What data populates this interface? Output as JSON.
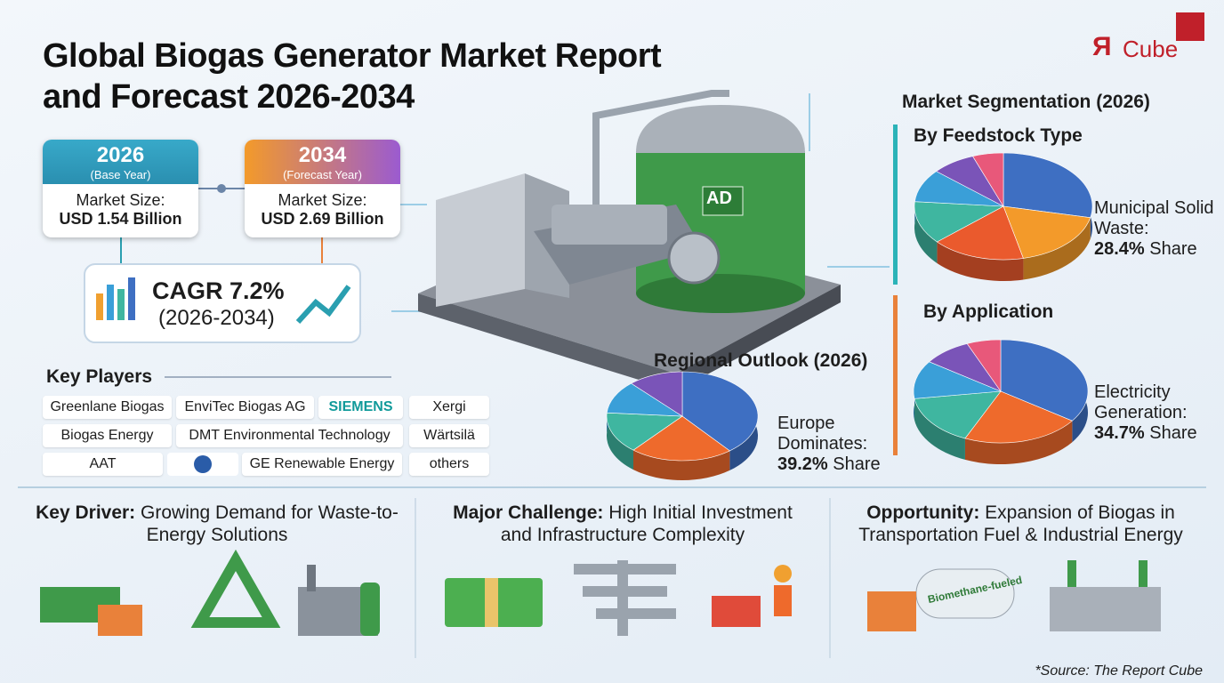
{
  "header": {
    "title_line1": "Global Biogas Generator Market Report",
    "title_line2": "and Forecast 2026-2034"
  },
  "logo": {
    "mark": "Я",
    "text": "Cube"
  },
  "market_size": [
    {
      "year": "2026",
      "caption": "(Base Year)",
      "label": "Market Size:",
      "value": "USD 1.54 Billion"
    },
    {
      "year": "2034",
      "caption": "(Forecast Year)",
      "label": "Market Size:",
      "value": "USD 2.69 Billion"
    }
  ],
  "cagr": {
    "label": "CAGR 7.2%",
    "period": "(2026-2034)"
  },
  "key_players": {
    "title": "Key Players",
    "rows": [
      [
        "Greenlane Biogas",
        "EnviTec Biogas AG",
        "SIEMENS",
        "Xergi"
      ],
      [
        "Biogas Energy",
        "DMT Environmental Technology",
        "Wärtsilä"
      ],
      [
        "AAT",
        "GE Renewable Energy",
        "others"
      ]
    ]
  },
  "illustration": {
    "tank_label": "AD",
    "truck_label": "Biomethane-fueled"
  },
  "segmentation": {
    "title": "Market Segmentation (2026)",
    "feedstock": {
      "title": "By Feedstock Type",
      "label": "Municipal Solid Waste:",
      "share": "28.4%",
      "share_suffix": "Share",
      "slices": [
        28.4,
        18,
        17,
        13,
        10,
        8,
        5.6
      ],
      "colors": [
        "#3e6fc2",
        "#f39a2a",
        "#ea5a2d",
        "#3fb6a0",
        "#3a9fd8",
        "#7a54b8",
        "#e8587a"
      ]
    },
    "application": {
      "title": "By Application",
      "label": "Electricity Generation:",
      "share": "34.7%",
      "share_suffix": "Share",
      "slices": [
        34.7,
        22,
        16,
        12,
        9,
        6.3
      ],
      "colors": [
        "#3e6fc2",
        "#ee6a2c",
        "#3fb6a0",
        "#3a9fd8",
        "#7a54b8",
        "#e8587a"
      ]
    }
  },
  "regional": {
    "title": "Regional Outlook (2026)",
    "label": "Europe Dominates:",
    "share": "39.2%",
    "share_suffix": "Share",
    "slices": [
      39.2,
      22,
      15,
      12,
      11.8
    ],
    "colors": [
      "#3e6fc2",
      "#ee6a2c",
      "#3fb6a0",
      "#3a9fd8",
      "#7a54b8"
    ]
  },
  "insights": [
    {
      "label": "Key Driver:",
      "text": "Growing Demand for Waste-to-Energy Solutions"
    },
    {
      "label": "Major Challenge:",
      "text": "High Initial Investment and Infrastructure Complexity"
    },
    {
      "label": "Opportunity:",
      "text": "Expansion of Biogas in Transportation Fuel & Industrial Energy"
    }
  ],
  "source": "*Source: The Report Cube"
}
